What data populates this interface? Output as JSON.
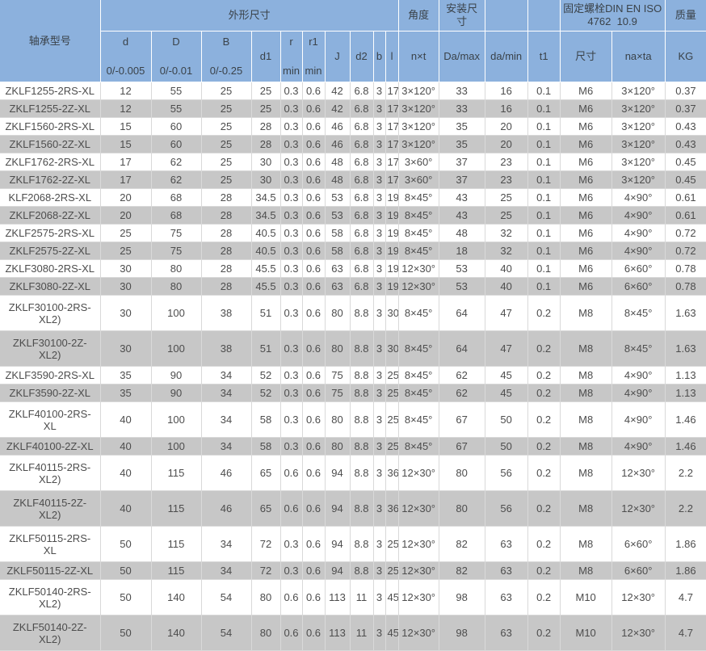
{
  "colors": {
    "header_bg": "#8CB1DD",
    "header_text": "#3A4249",
    "stripe": "#C7C7C7",
    "body_text": "#4D4D4D",
    "border": "#D9D9D9",
    "hborder": "#FFFFFF"
  },
  "header": {
    "bearing_model": "轴承型号",
    "outer_dimensions": "外形尺寸",
    "angle": "角度",
    "mounting_dimensions": "安装尺寸",
    "fixing_bolt": "固定螺栓DIN EN ISO\n4762  10.9",
    "mass": "质量",
    "col_d": "d",
    "col_d_tol": "0/-0.005",
    "col_D": "D",
    "col_D_tol": "0/-0.01",
    "col_B": "B",
    "col_B_tol": "0/-0.25",
    "col_d1": "d1",
    "col_r": "r",
    "col_r_min": "min",
    "col_r1": "r1",
    "col_r1_min": "min",
    "col_J": "J",
    "col_d2": "d2",
    "col_b": "b",
    "col_l": "l",
    "col_nxt": "n×t",
    "col_Da_max": "Da/max",
    "col_da_min": "da/min",
    "col_t1": "t1",
    "col_bolt_size": "尺寸",
    "col_naxta": "na×ta",
    "col_kg": "KG"
  },
  "chart_data": {
    "type": "table",
    "title": "",
    "column_groups": [
      "轴承型号",
      "外形尺寸",
      "角度",
      "安装尺寸",
      "固定螺栓DIN EN ISO 4762 10.9",
      "质量"
    ],
    "columns": [
      "轴承型号",
      "d 0/-0.005",
      "D 0/-0.01",
      "B 0/-0.25",
      "d1",
      "r min",
      "r1 min",
      "J",
      "d2",
      "b",
      "l",
      "n×t",
      "Da/max",
      "da/min",
      "t1",
      "尺寸",
      "na×ta",
      "KG"
    ],
    "rows": [
      [
        "ZKLF1255-2RS-XL",
        "12",
        "55",
        "25",
        "25",
        "0.3",
        "0.6",
        "42",
        "6.8",
        "3",
        "17",
        "3×120°",
        "33",
        "16",
        "0.1",
        "M6",
        "3×120°",
        "0.37"
      ],
      [
        "ZKLF1255-2Z-XL",
        "12",
        "55",
        "25",
        "25",
        "0.3",
        "0.6",
        "42",
        "6.8",
        "3",
        "17",
        "3×120°",
        "33",
        "16",
        "0.1",
        "M6",
        "3×120°",
        "0.37"
      ],
      [
        "ZKLF1560-2RS-XL",
        "15",
        "60",
        "25",
        "28",
        "0.3",
        "0.6",
        "46",
        "6.8",
        "3",
        "17",
        "3×120°",
        "35",
        "20",
        "0.1",
        "M6",
        "3×120°",
        "0.43"
      ],
      [
        "ZKLF1560-2Z-XL",
        "15",
        "60",
        "25",
        "28",
        "0.3",
        "0.6",
        "46",
        "6.8",
        "3",
        "17",
        "3×120°",
        "35",
        "20",
        "0.1",
        "M6",
        "3×120°",
        "0.43"
      ],
      [
        "ZKLF1762-2RS-XL",
        "17",
        "62",
        "25",
        "30",
        "0.3",
        "0.6",
        "48",
        "6.8",
        "3",
        "17",
        "3×60°",
        "37",
        "23",
        "0.1",
        "M6",
        "3×120°",
        "0.45"
      ],
      [
        "ZKLF1762-2Z-XL",
        "17",
        "62",
        "25",
        "30",
        "0.3",
        "0.6",
        "48",
        "6.8",
        "3",
        "17",
        "3×60°",
        "37",
        "23",
        "0.1",
        "M6",
        "3×120°",
        "0.45"
      ],
      [
        "KLF2068-2RS-XL",
        "20",
        "68",
        "28",
        "34.5",
        "0.3",
        "0.6",
        "53",
        "6.8",
        "3",
        "19",
        "8×45°",
        "43",
        "25",
        "0.1",
        "M6",
        "4×90°",
        "0.61"
      ],
      [
        "ZKLF2068-2Z-XL",
        "20",
        "68",
        "28",
        "34.5",
        "0.3",
        "0.6",
        "53",
        "6.8",
        "3",
        "19",
        "8×45°",
        "43",
        "25",
        "0.1",
        "M6",
        "4×90°",
        "0.61"
      ],
      [
        "ZKLF2575-2RS-XL",
        "25",
        "75",
        "28",
        "40.5",
        "0.3",
        "0.6",
        "58",
        "6.8",
        "3",
        "19",
        "8×45°",
        "48",
        "32",
        "0.1",
        "M6",
        "4×90°",
        "0.72"
      ],
      [
        "ZKLF2575-2Z-XL",
        "25",
        "75",
        "28",
        "40.5",
        "0.3",
        "0.6",
        "58",
        "6.8",
        "3",
        "19",
        "8×45°",
        "18",
        "32",
        "0.1",
        "M6",
        "4×90°",
        "0.72"
      ],
      [
        "ZKLF3080-2RS-XL",
        "30",
        "80",
        "28",
        "45.5",
        "0.3",
        "0.6",
        "63",
        "6.8",
        "3",
        "19",
        "12×30°",
        "53",
        "40",
        "0.1",
        "M6",
        "6×60°",
        "0.78"
      ],
      [
        "ZKLF3080-2Z-XL",
        "30",
        "80",
        "28",
        "45.5",
        "0.3",
        "0.6",
        "63",
        "6.8",
        "3",
        "19",
        "12×30°",
        "53",
        "40",
        "0.1",
        "M6",
        "6×60°",
        "0.78"
      ],
      [
        "ZKLF30100-2RS-XL2)",
        "30",
        "100",
        "38",
        "51",
        "0.3",
        "0.6",
        "80",
        "8.8",
        "3",
        "30",
        "8×45°",
        "64",
        "47",
        "0.2",
        "M8",
        "8×45°",
        "1.63"
      ],
      [
        "ZKLF30100-2Z-XL2)",
        "30",
        "100",
        "38",
        "51",
        "0.3",
        "0.6",
        "80",
        "8.8",
        "3",
        "30",
        "8×45°",
        "64",
        "47",
        "0.2",
        "M8",
        "8×45°",
        "1.63"
      ],
      [
        "ZKLF3590-2RS-XL",
        "35",
        "90",
        "34",
        "52",
        "0.3",
        "0.6",
        "75",
        "8.8",
        "3",
        "25",
        "8×45°",
        "62",
        "45",
        "0.2",
        "M8",
        "4×90°",
        "1.13"
      ],
      [
        "ZKLF3590-2Z-XL",
        "35",
        "90",
        "34",
        "52",
        "0.3",
        "0.6",
        "75",
        "8.8",
        "3",
        "25",
        "8×45°",
        "62",
        "45",
        "0.2",
        "M8",
        "4×90°",
        "1.13"
      ],
      [
        "ZKLF40100-2RS-XL",
        "40",
        "100",
        "34",
        "58",
        "0.3",
        "0.6",
        "80",
        "8.8",
        "3",
        "25",
        "8×45°",
        "67",
        "50",
        "0.2",
        "M8",
        "4×90°",
        "1.46"
      ],
      [
        "ZKLF40100-2Z-XL",
        "40",
        "100",
        "34",
        "58",
        "0.3",
        "0.6",
        "80",
        "8.8",
        "3",
        "25",
        "8×45°",
        "67",
        "50",
        "0.2",
        "M8",
        "4×90°",
        "1.46"
      ],
      [
        "ZKLF40115-2RS-XL2)",
        "40",
        "115",
        "46",
        "65",
        "0.6",
        "0.6",
        "94",
        "8.8",
        "3",
        "36",
        "12×30°",
        "80",
        "56",
        "0.2",
        "M8",
        "12×30°",
        "2.2"
      ],
      [
        "ZKLF40115-2Z-XL2)",
        "40",
        "115",
        "46",
        "65",
        "0.6",
        "0.6",
        "94",
        "8.8",
        "3",
        "36",
        "12×30°",
        "80",
        "56",
        "0.2",
        "M8",
        "12×30°",
        "2.2"
      ],
      [
        "ZKLF50115-2RS-XL",
        "50",
        "115",
        "34",
        "72",
        "0.3",
        "0.6",
        "94",
        "8.8",
        "3",
        "25",
        "12×30°",
        "82",
        "63",
        "0.2",
        "M8",
        "6×60°",
        "1.86"
      ],
      [
        "ZKLF50115-2Z-XL",
        "50",
        "115",
        "34",
        "72",
        "0.3",
        "0.6",
        "94",
        "8.8",
        "3",
        "25",
        "12×30°",
        "82",
        "63",
        "0.2",
        "M8",
        "6×60°",
        "1.86"
      ],
      [
        "ZKLF50140-2RS-XL2)",
        "50",
        "140",
        "54",
        "80",
        "0.6",
        "0.6",
        "113",
        "11",
        "3",
        "45",
        "12×30°",
        "98",
        "63",
        "0.2",
        "M10",
        "12×30°",
        "4.7"
      ],
      [
        "ZKLF50140-2Z-XL2)",
        "50",
        "140",
        "54",
        "80",
        "0.6",
        "0.6",
        "113",
        "11",
        "3",
        "45",
        "12×30°",
        "98",
        "63",
        "0.2",
        "M10",
        "12×30°",
        "4.7"
      ]
    ]
  }
}
